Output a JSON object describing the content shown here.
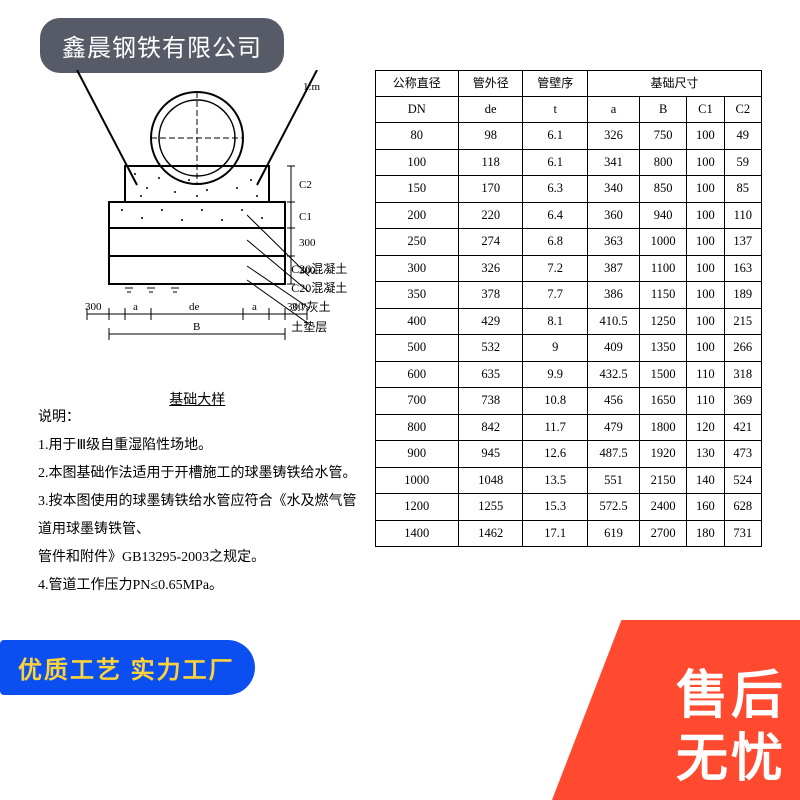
{
  "top_label": "鑫晨钢铁有限公司",
  "diagram": {
    "caption": "基础大样",
    "slope_label": "1:m",
    "dims": {
      "top_c2": "C2",
      "c1": "C1",
      "v300a": "300",
      "v300b": "300",
      "h300l": "300",
      "h300r": "300",
      "a_l": "a",
      "a_r": "a",
      "de": "de",
      "B": "B"
    },
    "layers": {
      "c20a": "C20混凝土",
      "c20b": "C20混凝土",
      "lime": "3:7灰土",
      "bed": "土垫层"
    }
  },
  "table": {
    "head": {
      "dn": "公称直径",
      "de": "管外径",
      "t": "管壁序",
      "dims_span": "基础尺寸",
      "sub": {
        "dn": "DN",
        "de": "de",
        "t": "t",
        "a": "a",
        "B": "B",
        "c1": "C1",
        "c2": "C2"
      }
    },
    "rows": [
      [
        "80",
        "98",
        "6.1",
        "326",
        "750",
        "100",
        "49"
      ],
      [
        "100",
        "118",
        "6.1",
        "341",
        "800",
        "100",
        "59"
      ],
      [
        "150",
        "170",
        "6.3",
        "340",
        "850",
        "100",
        "85"
      ],
      [
        "200",
        "220",
        "6.4",
        "360",
        "940",
        "100",
        "110"
      ],
      [
        "250",
        "274",
        "6.8",
        "363",
        "1000",
        "100",
        "137"
      ],
      [
        "300",
        "326",
        "7.2",
        "387",
        "1100",
        "100",
        "163"
      ],
      [
        "350",
        "378",
        "7.7",
        "386",
        "1150",
        "100",
        "189"
      ],
      [
        "400",
        "429",
        "8.1",
        "410.5",
        "1250",
        "100",
        "215"
      ],
      [
        "500",
        "532",
        "9",
        "409",
        "1350",
        "100",
        "266"
      ],
      [
        "600",
        "635",
        "9.9",
        "432.5",
        "1500",
        "110",
        "318"
      ],
      [
        "700",
        "738",
        "10.8",
        "456",
        "1650",
        "110",
        "369"
      ],
      [
        "800",
        "842",
        "11.7",
        "479",
        "1800",
        "120",
        "421"
      ],
      [
        "900",
        "945",
        "12.6",
        "487.5",
        "1920",
        "130",
        "473"
      ],
      [
        "1000",
        "1048",
        "13.5",
        "551",
        "2150",
        "140",
        "524"
      ],
      [
        "1200",
        "1255",
        "15.3",
        "572.5",
        "2400",
        "160",
        "628"
      ],
      [
        "1400",
        "1462",
        "17.1",
        "619",
        "2700",
        "180",
        "731"
      ]
    ]
  },
  "notes": {
    "title": "说明：",
    "n1": "1.用于Ⅲ级自重湿陷性场地。",
    "n2": "2.本图基础作法适用于开槽施工的球墨铸铁给水管。",
    "n3a": "3.按本图使用的球墨铸铁给水管应符合《水及燃气管道用球墨铸铁管、",
    "n3b": "管件和附件》GB13295-2003之规定。",
    "n4": "4.管道工作压力PN≤0.65MPa。"
  },
  "blue_banner": "优质工艺 实力工厂",
  "red_corner": {
    "l1": "售后",
    "l2": "无忧"
  }
}
